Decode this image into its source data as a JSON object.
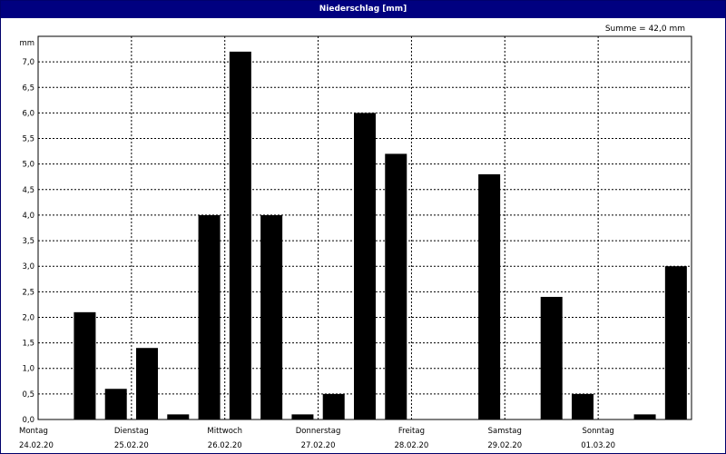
{
  "window": {
    "title": "Niederschlag [mm]"
  },
  "summary": {
    "text": "Summe = 42,0 mm"
  },
  "chart_data": {
    "type": "bar",
    "title": "Niederschlag [mm]",
    "ylabel": "mm",
    "ylim": [
      0,
      7.5
    ],
    "grid": true,
    "yticks": [
      "0,0",
      "0,5",
      "1,0",
      "1,5",
      "2,0",
      "2,5",
      "3,0",
      "3,5",
      "4,0",
      "4,5",
      "5,0",
      "5,5",
      "6,0",
      "6,5",
      "7,0"
    ],
    "days": [
      {
        "name": "Montag",
        "date": "24.02.20"
      },
      {
        "name": "Dienstag",
        "date": "25.02.20"
      },
      {
        "name": "Mittwoch",
        "date": "26.02.20"
      },
      {
        "name": "Donnerstag",
        "date": "27.02.20"
      },
      {
        "name": "Freitag",
        "date": "28.02.20"
      },
      {
        "name": "Samstag",
        "date": "29.02.20"
      },
      {
        "name": "Sonntag",
        "date": "01.03.20"
      }
    ],
    "bars_per_day": 3,
    "values": [
      0.0,
      2.1,
      0.6,
      1.4,
      0.1,
      4.0,
      7.2,
      4.0,
      0.1,
      0.5,
      6.0,
      5.2,
      0.0,
      0.0,
      4.8,
      0.0,
      2.4,
      0.5,
      0.0,
      0.1,
      3.0
    ],
    "bar_color": "#000000",
    "summe": "Summe = 42,0 mm"
  }
}
